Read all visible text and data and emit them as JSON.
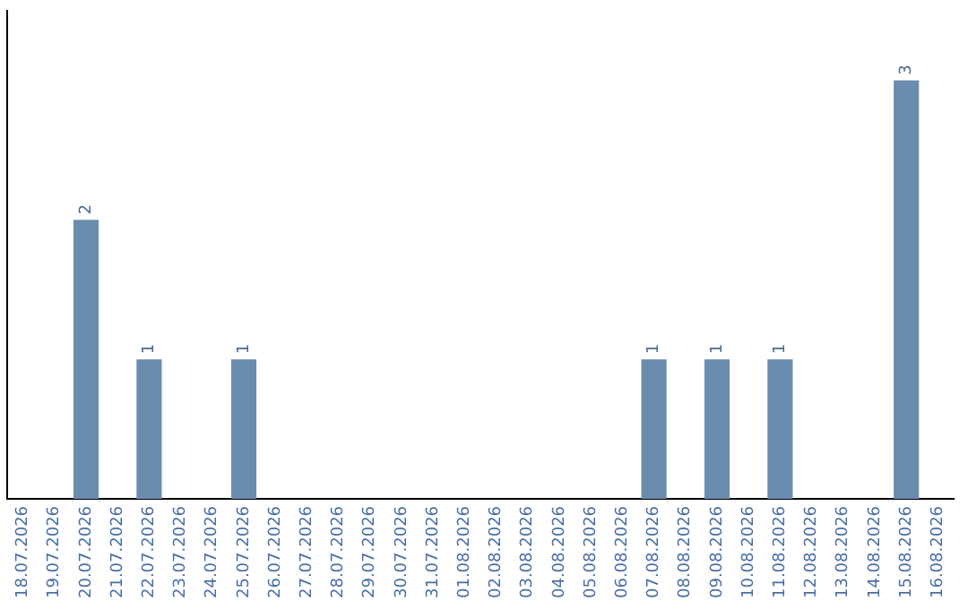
{
  "chart_data": {
    "type": "bar",
    "categories": [
      "18.07.2026",
      "19.07.2026",
      "20.07.2026",
      "21.07.2026",
      "22.07.2026",
      "23.07.2026",
      "24.07.2026",
      "25.07.2026",
      "26.07.2026",
      "27.07.2026",
      "28.07.2026",
      "29.07.2026",
      "30.07.2026",
      "31.07.2026",
      "01.08.2026",
      "02.08.2026",
      "03.08.2026",
      "04.08.2026",
      "05.08.2026",
      "06.08.2026",
      "07.08.2026",
      "08.08.2026",
      "09.08.2026",
      "10.08.2026",
      "11.08.2026",
      "12.08.2026",
      "13.08.2026",
      "14.08.2026",
      "15.08.2026",
      "16.08.2026"
    ],
    "values": [
      0,
      0,
      2,
      0,
      1,
      0,
      0,
      1,
      0,
      0,
      0,
      0,
      0,
      0,
      0,
      0,
      0,
      0,
      0,
      0,
      1,
      0,
      1,
      0,
      1,
      0,
      0,
      0,
      3,
      0
    ],
    "value_labels": [
      null,
      null,
      "2",
      null,
      "1",
      null,
      null,
      "1",
      null,
      null,
      null,
      null,
      null,
      null,
      null,
      null,
      null,
      null,
      null,
      null,
      "1",
      null,
      "1",
      null,
      "1",
      null,
      null,
      null,
      "3",
      null
    ],
    "color": "#6a8caf",
    "relative": false,
    "grid": false,
    "legend": false
  }
}
